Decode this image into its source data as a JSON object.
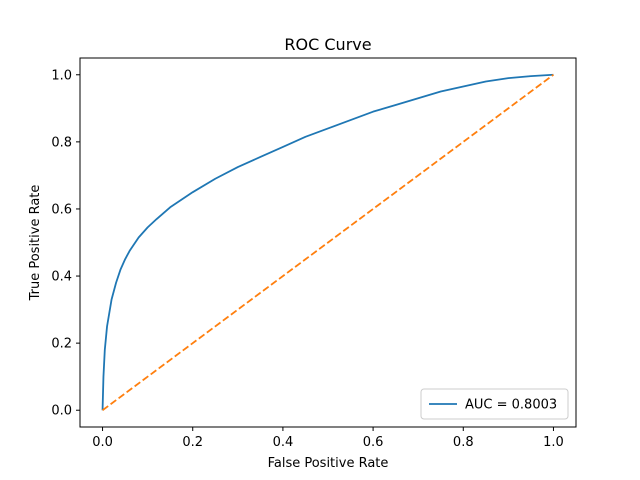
{
  "colors": {
    "roc": "#1f77b4",
    "baseline": "#ff7f0e",
    "axes": "#000000",
    "legend_border": "#cccccc"
  },
  "chart_data": {
    "type": "line",
    "title": "ROC Curve",
    "xlabel": "False Positive Rate",
    "ylabel": "True Positive Rate",
    "xlim": [
      -0.05,
      1.05
    ],
    "ylim": [
      -0.05,
      1.05
    ],
    "xticks": [
      0.0,
      0.2,
      0.4,
      0.6,
      0.8,
      1.0
    ],
    "yticks": [
      0.0,
      0.2,
      0.4,
      0.6,
      0.8,
      1.0
    ],
    "xtick_labels": [
      "0.0",
      "0.2",
      "0.4",
      "0.6",
      "0.8",
      "1.0"
    ],
    "ytick_labels": [
      "0.0",
      "0.2",
      "0.4",
      "0.6",
      "0.8",
      "1.0"
    ],
    "grid": false,
    "legend_position": "lower-right",
    "series": [
      {
        "name": "AUC = 0.8003",
        "style": "solid",
        "color_key": "roc",
        "x": [
          0.0,
          0.002,
          0.005,
          0.01,
          0.02,
          0.03,
          0.04,
          0.05,
          0.06,
          0.08,
          0.1,
          0.12,
          0.15,
          0.2,
          0.25,
          0.3,
          0.35,
          0.4,
          0.45,
          0.5,
          0.55,
          0.6,
          0.65,
          0.7,
          0.75,
          0.8,
          0.85,
          0.9,
          0.95,
          1.0
        ],
        "y": [
          0.0,
          0.1,
          0.18,
          0.25,
          0.33,
          0.38,
          0.42,
          0.45,
          0.475,
          0.515,
          0.545,
          0.57,
          0.605,
          0.65,
          0.69,
          0.725,
          0.755,
          0.785,
          0.815,
          0.84,
          0.865,
          0.89,
          0.91,
          0.93,
          0.95,
          0.965,
          0.98,
          0.99,
          0.996,
          1.0
        ]
      },
      {
        "name": "",
        "style": "dashed",
        "color_key": "baseline",
        "x": [
          0.0,
          1.0
        ],
        "y": [
          0.0,
          1.0
        ]
      }
    ],
    "legend": [
      {
        "label": "AUC = 0.8003",
        "color_key": "roc"
      }
    ]
  }
}
